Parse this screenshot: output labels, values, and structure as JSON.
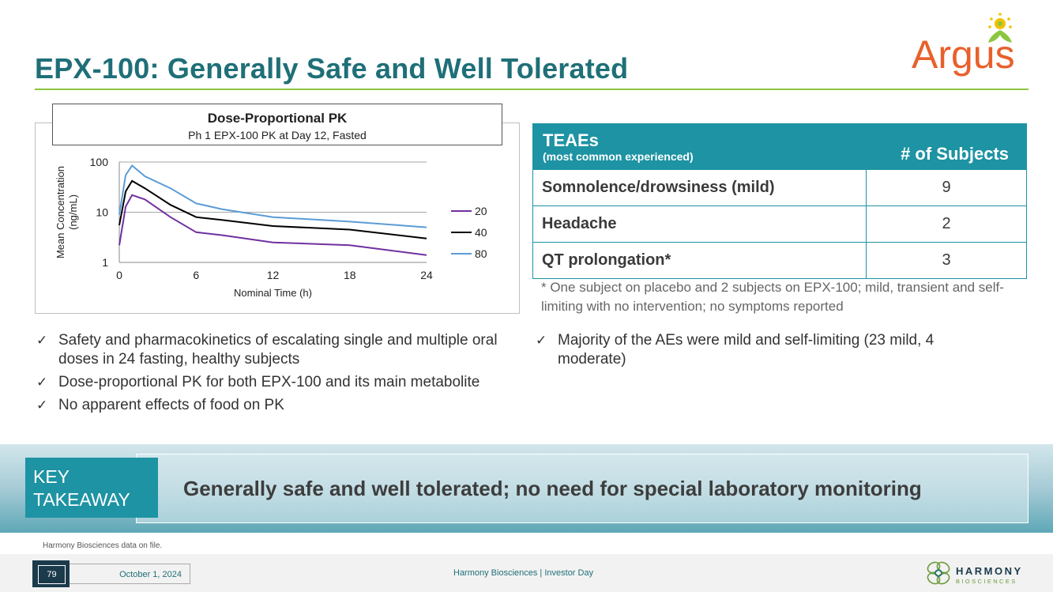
{
  "title": "EPX-100: Generally Safe and Well Tolerated",
  "logo_text": "Argus",
  "chart_header": {
    "title": "Dose-Proportional PK",
    "subtitle": "Ph 1 EPX-100 PK at Day 12, Fasted"
  },
  "chart_data": {
    "type": "line",
    "title": "Dose-Proportional PK",
    "subtitle": "Ph 1 EPX-100 PK at Day 12, Fasted",
    "xlabel": "Nominal Time (h)",
    "ylabel": "Mean Concentration (ng/mL)",
    "yscale": "log",
    "ylim": [
      1,
      100
    ],
    "xlim": [
      0,
      24
    ],
    "xticks": [
      "0",
      "6",
      "12",
      "18",
      "24"
    ],
    "yticks": [
      "1",
      "10",
      "100"
    ],
    "grid": "horizontal",
    "legend": "right",
    "series": [
      {
        "name": "20",
        "color": "#7030a0",
        "x": [
          0,
          0.5,
          1,
          2,
          4,
          6,
          8,
          12,
          18,
          24
        ],
        "y": [
          2.2,
          13,
          22,
          18,
          8,
          4,
          3.5,
          2.5,
          2.2,
          1.4
        ]
      },
      {
        "name": "40",
        "color": "#000000",
        "x": [
          0,
          0.5,
          1,
          2,
          4,
          6,
          8,
          12,
          18,
          24
        ],
        "y": [
          5.5,
          26,
          42,
          30,
          14,
          8,
          7,
          5.3,
          4.5,
          3
        ]
      },
      {
        "name": "80",
        "color": "#5b9bd5",
        "x": [
          0,
          0.5,
          1,
          2,
          4,
          6,
          8,
          12,
          18,
          24
        ],
        "y": [
          9,
          55,
          85,
          52,
          30,
          15,
          11.5,
          8,
          6.5,
          5
        ]
      }
    ]
  },
  "teae_table": {
    "header_main": "TEAEs",
    "header_sub": "(most common experienced)",
    "header_right": "# of Subjects",
    "rows": [
      {
        "name": "Somnolence/drowsiness (mild)",
        "count": "9"
      },
      {
        "name": "Headache",
        "count": "2"
      },
      {
        "name": "QT prolongation*",
        "count": "3"
      }
    ],
    "footnote": "* One subject on placebo and 2 subjects on EPX-100; mild, transient and self-limiting with no intervention; no symptoms reported"
  },
  "bullets_left": [
    "Safety and pharmacokinetics of escalating single and multiple oral doses in 24 fasting, healthy subjects",
    "Dose-proportional PK for both EPX-100 and its main metabolite",
    "No apparent effects of food on PK"
  ],
  "bullets_right": [
    "Majority of the AEs were mild and self-limiting (23 mild, 4 moderate)"
  ],
  "key_takeaway": {
    "label_line1": "KEY",
    "label_line2": "TAKEAWAY",
    "text": "Generally safe and well tolerated; no need for special laboratory monitoring"
  },
  "source": "Harmony Biosciences data on file.",
  "footer": {
    "page_number": "79",
    "date": "October 1, 2024",
    "center": "Harmony Biosciences  |  Investor Day",
    "brand_top": "HARMONY",
    "brand_bottom": "BIOSCIENCES"
  },
  "colors": {
    "title": "#1f6f78",
    "accent_line": "#8cc63f",
    "table_header": "#1d93a3",
    "takeaway_box": "#1d93a3"
  }
}
